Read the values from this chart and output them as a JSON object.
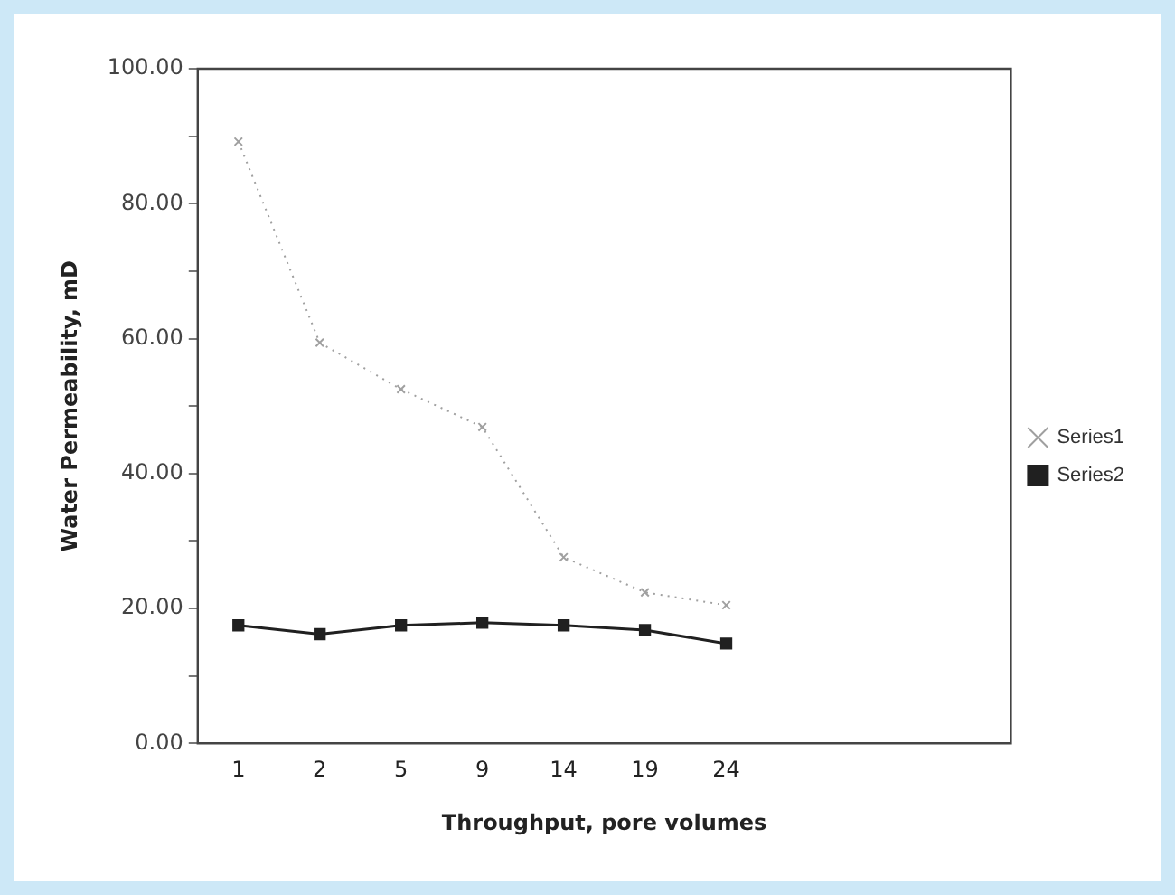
{
  "chart_data": {
    "type": "line",
    "xlabel": "Throughput, pore volumes",
    "ylabel": "Water Permeability, mD",
    "categories": [
      "1",
      "2",
      "5",
      "9",
      "14",
      "19",
      "24",
      null,
      null,
      null
    ],
    "series": [
      {
        "name": "Series1",
        "color": "#a0a0a0",
        "marker": "cross",
        "line_style": "dotted",
        "values": [
          89.2,
          59.4,
          52.5,
          46.9,
          27.6,
          22.4,
          20.5,
          null,
          null,
          null
        ]
      },
      {
        "name": "Series2",
        "color": "#202020",
        "marker": "square",
        "line_style": "solid",
        "values": [
          17.5,
          16.2,
          17.5,
          17.9,
          17.5,
          16.8,
          14.8,
          null,
          null,
          null
        ]
      }
    ],
    "ylim": [
      0,
      100
    ],
    "yticks": [
      {
        "value": 0,
        "label": "0.00"
      },
      {
        "value": 10,
        "label": null
      },
      {
        "value": 20,
        "label": "20.00"
      },
      {
        "value": 30,
        "label": null
      },
      {
        "value": 40,
        "label": "40.00"
      },
      {
        "value": 50,
        "label": null
      },
      {
        "value": 60,
        "label": "60.00"
      },
      {
        "value": 70,
        "label": null
      },
      {
        "value": 80,
        "label": "80.00"
      },
      {
        "value": 90,
        "label": null
      },
      {
        "value": 100,
        "label": "100.00"
      }
    ],
    "grid": false,
    "legend": "right"
  }
}
